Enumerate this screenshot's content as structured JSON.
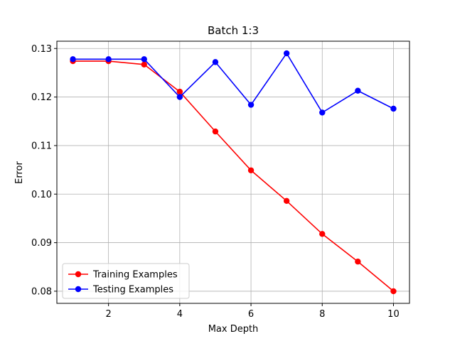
{
  "chart_data": {
    "type": "line",
    "title": "Batch 1:3",
    "xlabel": "Max Depth",
    "ylabel": "Error",
    "x": [
      1,
      2,
      3,
      4,
      5,
      6,
      7,
      8,
      9,
      10
    ],
    "xlim": [
      0.55,
      10.45
    ],
    "ylim": [
      0.0775,
      0.1315
    ],
    "xticks": [
      2,
      4,
      6,
      8,
      10
    ],
    "yticks": [
      0.08,
      0.09,
      0.1,
      0.11,
      0.12,
      0.13
    ],
    "ytick_labels": [
      "0.08",
      "0.09",
      "0.10",
      "0.11",
      "0.12",
      "0.13"
    ],
    "grid": true,
    "legend_position": "lower-left",
    "series": [
      {
        "name": "Training Examples",
        "color": "#ff0000",
        "marker": "circle",
        "values": [
          0.1274,
          0.1274,
          0.1267,
          0.1211,
          0.1129,
          0.1049,
          0.0986,
          0.0918,
          0.0861,
          0.08
        ]
      },
      {
        "name": "Testing Examples",
        "color": "#0000ff",
        "marker": "circle",
        "values": [
          0.1278,
          0.1278,
          0.1278,
          0.12,
          0.1272,
          0.1184,
          0.129,
          0.1168,
          0.1213,
          0.1176
        ]
      }
    ]
  }
}
